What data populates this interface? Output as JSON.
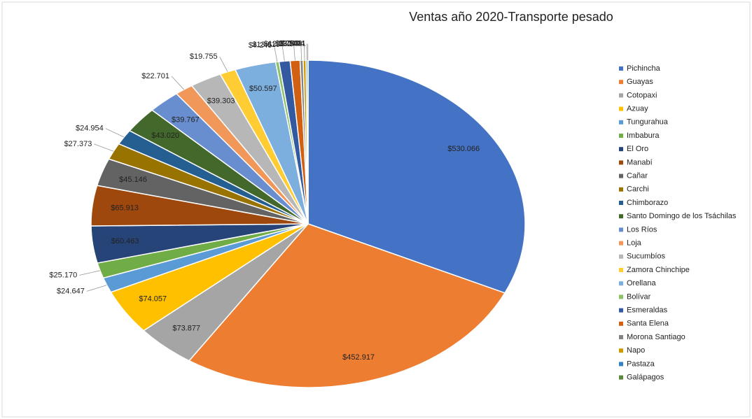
{
  "chart_data": {
    "type": "pie",
    "title": "Ventas año 2020-Transporte pesado",
    "categories": [
      "Pichincha",
      "Guayas",
      "Cotopaxi",
      "Azuay",
      "Tungurahua",
      "Imbabura",
      "El Oro",
      "Manabí",
      "Cañar",
      "Carchi",
      "Chimborazo",
      "Santo Domingo de los Tsáchilas",
      "Los Ríos",
      "Loja",
      "Sucumbíos",
      "Zamora Chinchipe",
      "Orellana",
      "Bolívar",
      "Esmeraldas",
      "Santa Elena",
      "Morona Santiago",
      "Napo",
      "Pastaza",
      "Galápagos"
    ],
    "values": [
      530066,
      452917,
      73877,
      74057,
      24647,
      25170,
      60463,
      65913,
      45146,
      27373,
      24954,
      43020,
      39767,
      22701,
      39303,
      19755,
      50597,
      4245,
      13619,
      12132,
      3783,
      3508,
      2094,
      411
    ],
    "value_labels": [
      "$530.066",
      "$452.917",
      "$73.877",
      "$74.057",
      "$24.647",
      "$25.170",
      "$60.463",
      "$65.913",
      "$45.146",
      "$27.373",
      "$24.954",
      "$43.020",
      "$39.767",
      "$22.701",
      "$39.303",
      "$19.755",
      "$50.597",
      "$4.245",
      "$13.619",
      "$12.132",
      "$3.783",
      "$3.508",
      "$2.094",
      "$411"
    ],
    "colors": [
      "#4472c4",
      "#ed7d31",
      "#a5a5a5",
      "#ffc000",
      "#5b9bd5",
      "#70ad47",
      "#264478",
      "#9e480e",
      "#636363",
      "#997300",
      "#255e91",
      "#43682b",
      "#698ed0",
      "#f1975a",
      "#b7b7b7",
      "#ffcd33",
      "#7cafdd",
      "#8cc168",
      "#335aa1",
      "#d26012",
      "#828282",
      "#cc9a00",
      "#3281c8",
      "#5a8a39"
    ],
    "legend": "right"
  }
}
